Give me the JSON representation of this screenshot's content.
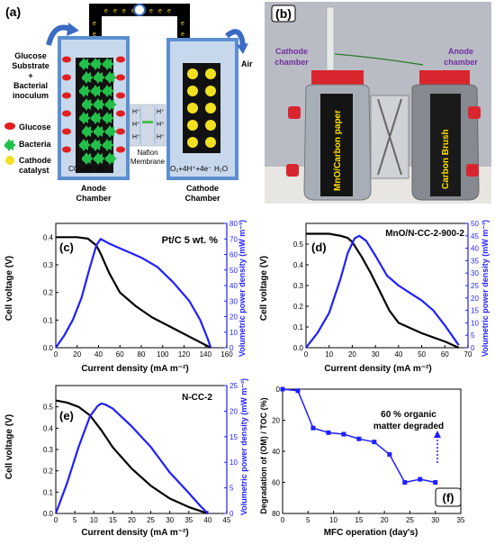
{
  "panel_a": {
    "label": "(a)",
    "left_title": [
      "Glucose",
      "Substrate",
      "+",
      "Bacterial",
      "inoculum"
    ],
    "legend": [
      "Glucose",
      "Bacteria",
      "Cathode",
      "catalyst"
    ],
    "anode_reaction": "CO₂+H⁺+e⁻",
    "anode_label": [
      "Anode",
      "Chamber"
    ],
    "cathode_label": [
      "Cathode",
      "Chamber"
    ],
    "membrane_label": [
      "Nafion",
      "Membrane"
    ],
    "cathode_reaction": "O₂+4H⁺+4e⁻",
    "water": "H₂O",
    "air": "Air",
    "proton": "H⁺",
    "electron": "e"
  },
  "panel_b": {
    "label": "(b)",
    "cathode_chamber": [
      "Cathode",
      "chamber"
    ],
    "anode_chamber": [
      "Anode",
      "chamber"
    ],
    "left_bottle_text": "MnO/Carbon paper",
    "right_bottle_text": "Carbon Brush"
  },
  "panel_c": {
    "label": "(c)",
    "title": "Pt/C 5 wt. %",
    "xlabel": "Current density (mA m⁻²)",
    "ylabel": "Cell voltage (V)",
    "y2label": "Volumetric power density (mW m⁻³)",
    "xticks": [
      "0",
      "20",
      "40",
      "60",
      "80",
      "100",
      "120",
      "140",
      "160"
    ],
    "yticks": [
      "0.0",
      "0.1",
      "0.2",
      "0.3",
      "0.4"
    ],
    "y2ticks": [
      "0",
      "10",
      "20",
      "30",
      "40",
      "50",
      "60",
      "70",
      "80"
    ]
  },
  "panel_d": {
    "label": "(d)",
    "title": "MnO/N-CC-2-900-2",
    "xlabel": "Current density (mA m⁻²)",
    "ylabel": "Cell voltage (V)",
    "y2label": "Volumetric power density (mW m⁻³)",
    "xticks": [
      "0",
      "10",
      "20",
      "30",
      "40",
      "50",
      "60",
      "70"
    ],
    "yticks": [
      "0.0",
      "0.1",
      "0.2",
      "0.3",
      "0.4",
      "0.5"
    ],
    "y2ticks": [
      "0",
      "5",
      "10",
      "15",
      "20",
      "25",
      "30",
      "35",
      "40",
      "45",
      "50"
    ]
  },
  "panel_e": {
    "label": "(e)",
    "title": "N-CC-2",
    "xlabel": "Current density (mA m⁻²)",
    "ylabel": "Cell voltage (V)",
    "y2label": "Volumetric power density (mW m⁻³)",
    "xticks": [
      "0",
      "5",
      "10",
      "15",
      "20",
      "25",
      "30",
      "35",
      "40",
      "45"
    ],
    "yticks": [
      "0.0",
      "0.1",
      "0.2",
      "0.3",
      "0.4",
      "0.5"
    ],
    "y2ticks": [
      "0",
      "5",
      "10",
      "15",
      "20",
      "25"
    ]
  },
  "panel_f": {
    "label": "(f)",
    "xlabel": "MFC operation (day's)",
    "ylabel": "Degradation of (OM) / TOC (%)",
    "annotation": [
      "60 % organic",
      "matter degraded"
    ],
    "xticks": [
      "0",
      "5",
      "10",
      "15",
      "20",
      "25",
      "30",
      "35"
    ],
    "yticks": [
      "0",
      "20",
      "40",
      "60",
      "80"
    ]
  },
  "colors": {
    "voltage": "#000000",
    "power": "#1f1fff",
    "degradation": "#1f1fff",
    "anode_wall": "#5b8fd0",
    "chamber_fill": "#c8d8ec",
    "wire": "#ffd500"
  },
  "chart_data": [
    {
      "type": "line",
      "panel": "c",
      "title": "Pt/C 5 wt. %",
      "xlabel": "Current density (mA m⁻²)",
      "ylabel": "Cell voltage (V)",
      "y2label": "Volumetric power density (mW m⁻³)",
      "xlim": [
        0,
        160
      ],
      "ylim": [
        0,
        0.45
      ],
      "y2lim": [
        0,
        80
      ],
      "series": [
        {
          "axis": "left",
          "x": [
            0,
            10,
            20,
            30,
            38,
            42,
            50,
            60,
            75,
            90,
            110,
            130,
            145
          ],
          "y": [
            0.4,
            0.4,
            0.4,
            0.395,
            0.37,
            0.34,
            0.27,
            0.2,
            0.15,
            0.11,
            0.07,
            0.03,
            0.0
          ]
        },
        {
          "axis": "right",
          "x": [
            0,
            8,
            16,
            24,
            32,
            38,
            42,
            50,
            60,
            70,
            80,
            95,
            110,
            125,
            135,
            142,
            145
          ],
          "y": [
            0,
            8,
            18,
            32,
            52,
            66,
            70,
            67,
            64,
            61,
            58,
            52,
            42,
            30,
            18,
            6,
            0
          ]
        }
      ]
    },
    {
      "type": "line",
      "panel": "d",
      "title": "MnO/N-CC-2-900-2",
      "xlabel": "Current density (mA m⁻²)",
      "ylabel": "Cell voltage (V)",
      "y2label": "Volumetric power density (mW m⁻³)",
      "xlim": [
        0,
        70
      ],
      "ylim": [
        0,
        0.6
      ],
      "y2lim": [
        0,
        50
      ],
      "series": [
        {
          "axis": "left",
          "x": [
            0,
            5,
            10,
            15,
            18,
            20,
            24,
            28,
            32,
            36,
            40,
            50,
            60,
            66
          ],
          "y": [
            0.55,
            0.55,
            0.55,
            0.54,
            0.53,
            0.51,
            0.44,
            0.36,
            0.27,
            0.18,
            0.12,
            0.07,
            0.03,
            0.0
          ]
        },
        {
          "axis": "right",
          "x": [
            0,
            5,
            10,
            15,
            18,
            21,
            23,
            26,
            30,
            35,
            40,
            45,
            50,
            55,
            60,
            66
          ],
          "y": [
            0,
            6,
            14,
            28,
            38,
            44,
            45,
            43,
            37,
            29,
            25,
            22,
            19,
            15,
            9,
            1
          ]
        }
      ]
    },
    {
      "type": "line",
      "panel": "e",
      "title": "N-CC-2",
      "xlabel": "Current density (mA m⁻²)",
      "ylabel": "Cell voltage (V)",
      "y2label": "Volumetric power density (mW m⁻³)",
      "xlim": [
        0,
        45
      ],
      "ylim": [
        0,
        0.6
      ],
      "y2lim": [
        0,
        25
      ],
      "series": [
        {
          "axis": "left",
          "x": [
            0,
            3,
            6,
            9,
            12,
            15,
            20,
            25,
            30,
            35,
            40
          ],
          "y": [
            0.53,
            0.52,
            0.5,
            0.46,
            0.39,
            0.31,
            0.21,
            0.13,
            0.07,
            0.03,
            0.0
          ]
        },
        {
          "axis": "right",
          "x": [
            0,
            3,
            6,
            9,
            11,
            12,
            13,
            15,
            20,
            25,
            30,
            35,
            38,
            40
          ],
          "y": [
            0,
            6,
            13,
            19,
            21,
            21.5,
            21.3,
            20.5,
            17,
            13,
            8,
            4,
            1.5,
            0
          ]
        }
      ]
    },
    {
      "type": "scatter",
      "panel": "f",
      "xlabel": "MFC operation (day's)",
      "ylabel": "Degradation of (OM) / TOC (%)",
      "xlim": [
        0,
        35
      ],
      "ylim": [
        0,
        80
      ],
      "y_inverted": true,
      "series": [
        {
          "x": [
            0,
            3,
            6,
            9,
            12,
            15,
            18,
            21,
            24,
            27,
            30
          ],
          "y": [
            0,
            1,
            25,
            28,
            29,
            32,
            34,
            42,
            60,
            58,
            60
          ]
        }
      ]
    }
  ]
}
